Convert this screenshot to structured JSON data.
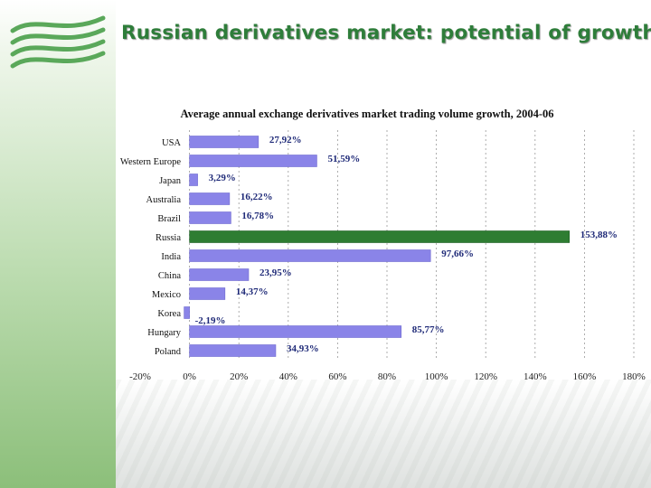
{
  "slide": {
    "title": "Russian derivatives market: potential of growth"
  },
  "colors": {
    "title": "#2e7d3a",
    "bar_default": "#8a84e8",
    "bar_highlight": "#2e7d32",
    "label": "#1f2a78",
    "sidebar": "#a9d39a"
  },
  "icons": {
    "logo": "company-logo-icon"
  },
  "chart_data": {
    "type": "bar",
    "orientation": "horizontal",
    "title": "Average annual exchange derivatives market trading volume growth, 2004-06",
    "categories": [
      "USA",
      "Western Europe",
      "Japan",
      "Australia",
      "Brazil",
      "Russia",
      "India",
      "China",
      "Mexico",
      "Korea",
      "Hungary",
      "Poland"
    ],
    "values": [
      27.92,
      51.59,
      3.29,
      16.22,
      16.78,
      153.88,
      97.66,
      23.95,
      14.37,
      -2.19,
      85.77,
      34.93
    ],
    "value_labels": [
      "27,92%",
      "51,59%",
      "3,29%",
      "16,22%",
      "16,78%",
      "153,88%",
      "97,66%",
      "23,95%",
      "14,37%",
      "-2,19%",
      "85,77%",
      "34,93%"
    ],
    "highlight": "Russia",
    "xlim": [
      -20,
      180
    ],
    "xticks": [
      -20,
      0,
      20,
      40,
      60,
      80,
      100,
      120,
      140,
      160,
      180
    ],
    "xtick_labels": [
      "-20%",
      "0%",
      "20%",
      "40%",
      "60%",
      "80%",
      "100%",
      "120%",
      "140%",
      "160%",
      "180%"
    ],
    "grid": "vertical-dashed",
    "xlabel": "",
    "ylabel": ""
  }
}
